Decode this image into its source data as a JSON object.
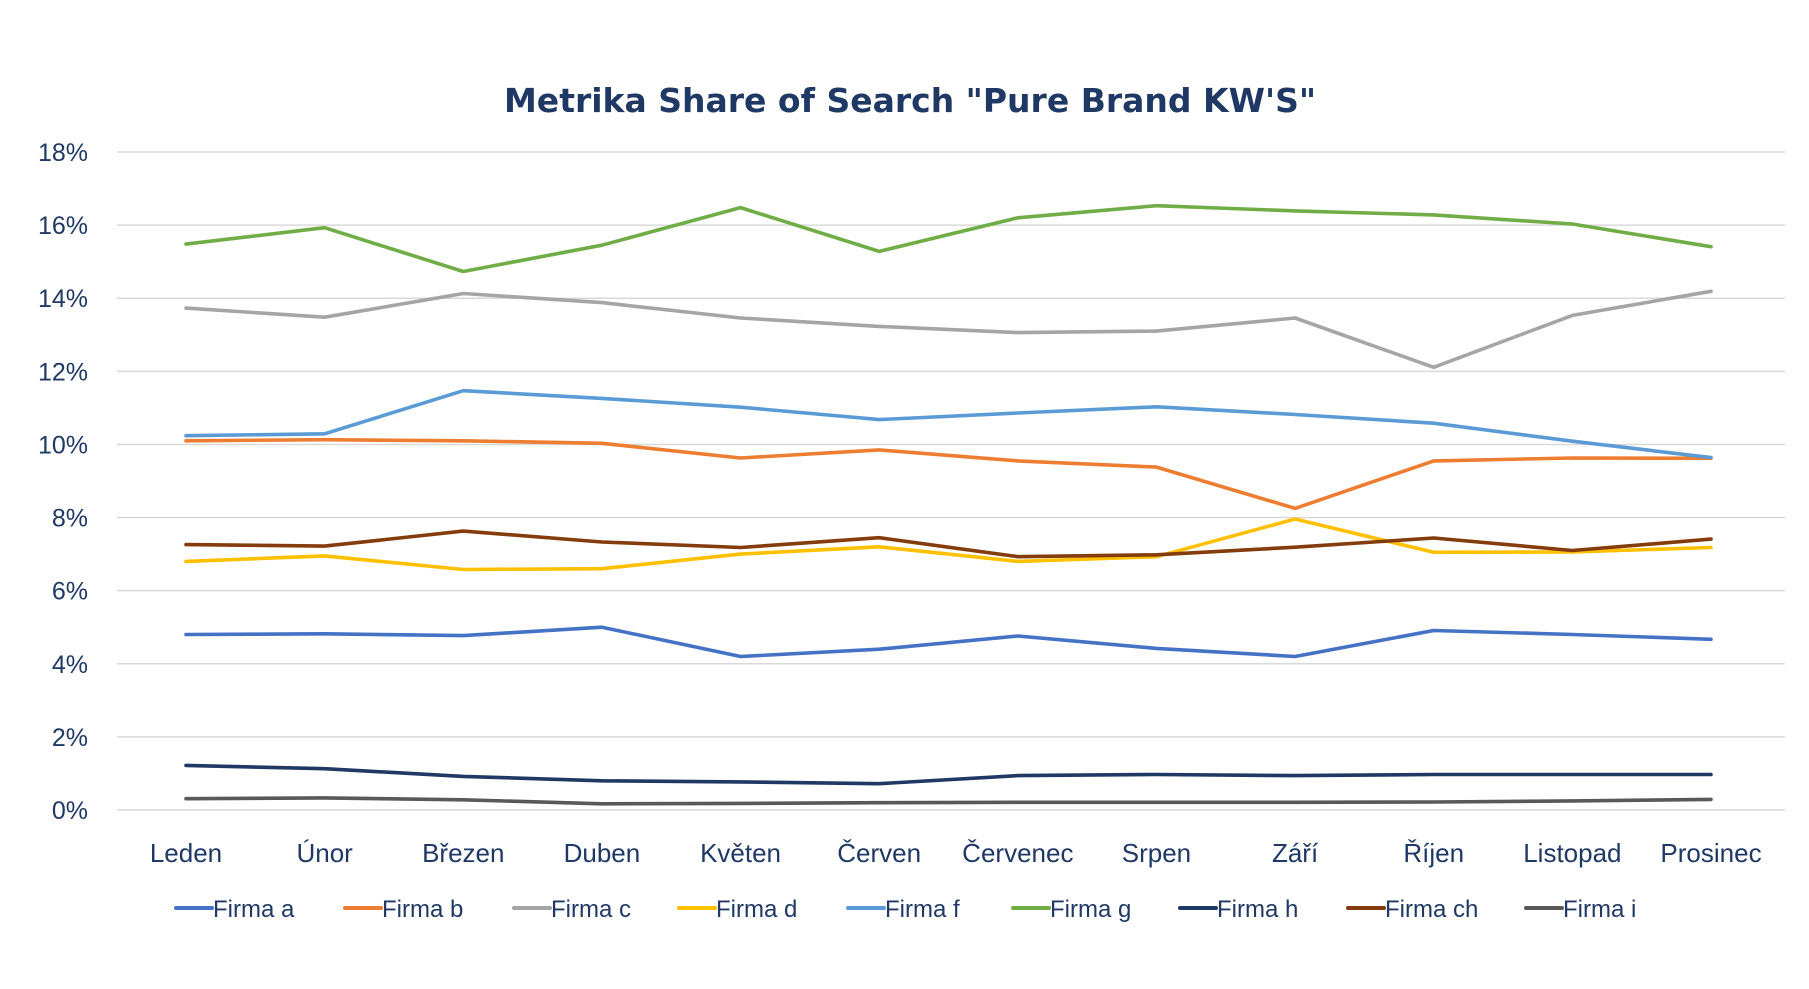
{
  "chart_data": {
    "type": "line",
    "title": "Metrika Share of Search \"Pure Brand KW'S\"",
    "xlabel": "",
    "ylabel": "",
    "ylim": [
      0,
      18
    ],
    "y_ticks": [
      "0%",
      "2%",
      "4%",
      "6%",
      "8%",
      "10%",
      "12%",
      "14%",
      "16%",
      "18%"
    ],
    "y_tick_values": [
      0,
      2,
      4,
      6,
      8,
      10,
      12,
      14,
      16,
      18
    ],
    "grid": true,
    "legend_position": "bottom",
    "categories": [
      "Leden",
      "Únor",
      "Březen",
      "Duben",
      "Květen",
      "Červen",
      "Červenec",
      "Srpen",
      "Září",
      "Říjen",
      "Listopad",
      "Prosinec"
    ],
    "series": [
      {
        "name": "Firma a",
        "color": "#4472c4",
        "values": [
          4.8,
          4.82,
          4.77,
          5.0,
          4.2,
          4.4,
          4.76,
          4.42,
          4.2,
          4.91,
          4.8,
          4.67
        ]
      },
      {
        "name": "Firma b",
        "color": "#ed7d31",
        "values": [
          10.1,
          10.13,
          10.1,
          10.03,
          9.63,
          9.85,
          9.55,
          9.38,
          8.25,
          9.55,
          9.63,
          9.62
        ]
      },
      {
        "name": "Firma c",
        "color": "#a5a5a5",
        "values": [
          13.73,
          13.48,
          14.13,
          13.88,
          13.46,
          13.23,
          13.06,
          13.1,
          13.46,
          12.11,
          13.53,
          14.19
        ]
      },
      {
        "name": "Firma d",
        "color": "#ffc000",
        "values": [
          6.8,
          6.95,
          6.58,
          6.6,
          7.0,
          7.2,
          6.8,
          6.93,
          7.96,
          7.05,
          7.06,
          7.18
        ]
      },
      {
        "name": "Firma f",
        "color": "#5b9bd5",
        "values": [
          10.24,
          10.29,
          11.47,
          11.26,
          11.02,
          10.68,
          10.86,
          11.03,
          10.82,
          10.58,
          10.09,
          9.64
        ]
      },
      {
        "name": "Firma g",
        "color": "#70ad47",
        "values": [
          15.48,
          15.93,
          14.73,
          15.45,
          16.48,
          15.28,
          16.2,
          16.53,
          16.39,
          16.28,
          16.03,
          15.41
        ]
      },
      {
        "name": "Firma h",
        "color": "#203864",
        "values": [
          1.22,
          1.13,
          0.92,
          0.8,
          0.77,
          0.72,
          0.94,
          0.97,
          0.94,
          0.97,
          0.97,
          0.97
        ]
      },
      {
        "name": "Firma ch",
        "color": "#843c0c",
        "values": [
          7.26,
          7.22,
          7.63,
          7.33,
          7.18,
          7.45,
          6.93,
          6.98,
          7.19,
          7.44,
          7.1,
          7.41
        ]
      },
      {
        "name": "Firma i",
        "color": "#595959",
        "values": [
          0.31,
          0.33,
          0.28,
          0.17,
          0.18,
          0.2,
          0.21,
          0.21,
          0.21,
          0.22,
          0.25,
          0.29
        ]
      }
    ]
  }
}
